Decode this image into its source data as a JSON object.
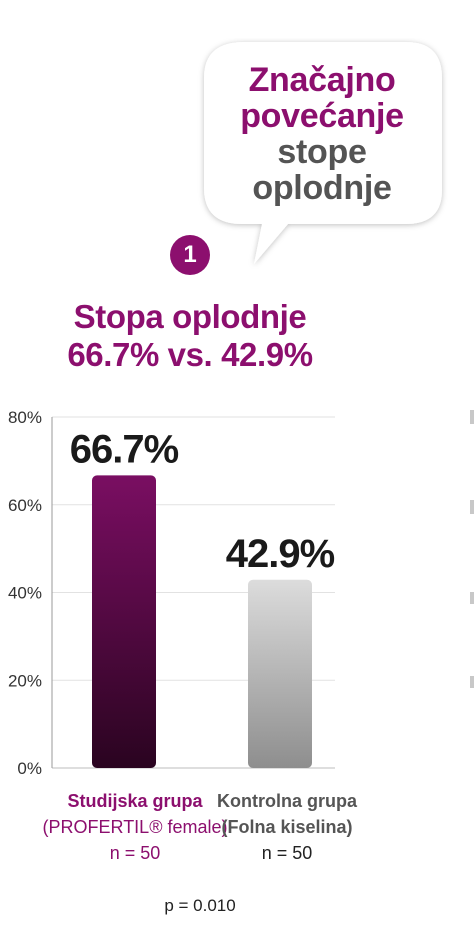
{
  "callout": {
    "line1": "Značajno",
    "line2": "povećanje",
    "line3": "stope",
    "line4": "oplodnje"
  },
  "badge": "1",
  "heading": {
    "line1": "Stopa oplodnje",
    "line2": "66.7% vs. 42.9%"
  },
  "colors": {
    "accent": "#8c0f6e",
    "study_bar_top": "#7a0e62",
    "study_bar_bottom": "#2a0420",
    "control_bar_top": "#dcdcdc",
    "control_bar_bottom": "#8e8e8e"
  },
  "chart_data": {
    "type": "bar",
    "categories": [
      "Studijska grupa",
      "Kontrolna grupa"
    ],
    "values": [
      66.7,
      42.9
    ],
    "value_labels": [
      "66.7%",
      "42.9%"
    ],
    "ylim": [
      0,
      80
    ],
    "yticks": [
      "0%",
      "20%",
      "40%",
      "60%",
      "80%"
    ],
    "grid": true
  },
  "categories": {
    "study": {
      "name": "Studijska grupa",
      "sub": "(PROFERTIL® female)",
      "n": "n = 50"
    },
    "control": {
      "name": "Kontrolna grupa",
      "sub": "(Folna kiselina)",
      "n": "n = 50"
    }
  },
  "pvalue": "p = 0.010"
}
